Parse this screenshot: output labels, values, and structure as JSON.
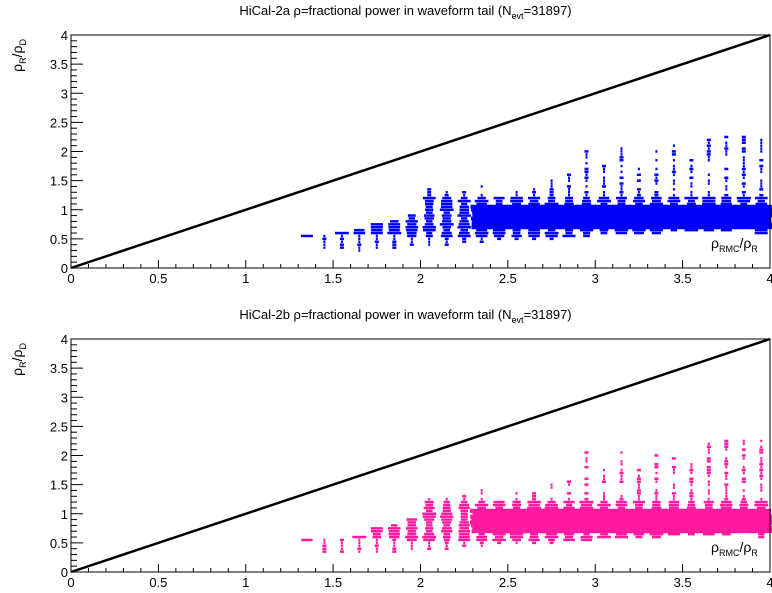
{
  "chart_data": [
    {
      "type": "scatter",
      "title": {
        "prefix": "HiCal-2a ρ=fractional power in waveform tail (N",
        "sub": "evt",
        "suffix": "=31897)"
      },
      "ylabel": {
        "a": "ρ",
        "a_sub": "R",
        "mid": "/ρ",
        "b_sub": "D"
      },
      "xlabel": {
        "a": "ρ",
        "a_sub": "RMC",
        "mid": "/ρ",
        "b_sub": "R"
      },
      "xlim": [
        0,
        4
      ],
      "ylim": [
        0,
        4
      ],
      "x_ticks": [
        "0",
        "0.5",
        "1",
        "1.5",
        "2",
        "2.5",
        "3",
        "3.5",
        "4"
      ],
      "y_ticks": [
        "0",
        "0.5",
        "1",
        "1.5",
        "2",
        "2.5",
        "3",
        "3.5",
        "4"
      ],
      "reference_line": {
        "x": [
          0,
          4
        ],
        "y": [
          0,
          4
        ],
        "color": "#000000"
      },
      "marker_color": "#0000ff",
      "columns": [
        {
          "x": 1.35,
          "y_min": 0.55,
          "y_max": 0.55
        },
        {
          "x": 1.45,
          "y_min": 0.35,
          "y_max": 0.55
        },
        {
          "x": 1.55,
          "y_min": 0.35,
          "y_max": 0.6
        },
        {
          "x": 1.65,
          "y_min": 0.3,
          "y_max": 0.65
        },
        {
          "x": 1.75,
          "y_min": 0.35,
          "y_max": 0.75
        },
        {
          "x": 1.85,
          "y_min": 0.35,
          "y_max": 0.8
        },
        {
          "x": 1.95,
          "y_min": 0.4,
          "y_max": 0.9
        },
        {
          "x": 2.05,
          "y_min": 0.4,
          "y_max": 1.35
        },
        {
          "x": 2.15,
          "y_min": 0.4,
          "y_max": 1.3
        },
        {
          "x": 2.25,
          "y_min": 0.45,
          "y_max": 1.3
        },
        {
          "x": 2.35,
          "y_min": 0.45,
          "y_max": 1.45
        },
        {
          "x": 2.45,
          "y_min": 0.5,
          "y_max": 1.2
        },
        {
          "x": 2.55,
          "y_min": 0.5,
          "y_max": 1.35
        },
        {
          "x": 2.65,
          "y_min": 0.5,
          "y_max": 1.35
        },
        {
          "x": 2.75,
          "y_min": 0.5,
          "y_max": 1.5
        },
        {
          "x": 2.85,
          "y_min": 0.55,
          "y_max": 1.6
        },
        {
          "x": 2.95,
          "y_min": 0.55,
          "y_max": 2.05
        },
        {
          "x": 3.05,
          "y_min": 0.6,
          "y_max": 1.75
        },
        {
          "x": 3.15,
          "y_min": 0.6,
          "y_max": 2.05
        },
        {
          "x": 3.25,
          "y_min": 0.6,
          "y_max": 1.8
        },
        {
          "x": 3.35,
          "y_min": 0.6,
          "y_max": 2.0
        },
        {
          "x": 3.45,
          "y_min": 0.65,
          "y_max": 2.1
        },
        {
          "x": 3.55,
          "y_min": 0.65,
          "y_max": 1.85
        },
        {
          "x": 3.65,
          "y_min": 0.65,
          "y_max": 2.2
        },
        {
          "x": 3.75,
          "y_min": 0.65,
          "y_max": 2.25
        },
        {
          "x": 3.85,
          "y_min": 0.7,
          "y_max": 2.25
        },
        {
          "x": 3.95,
          "y_min": 0.6,
          "y_max": 2.25
        }
      ],
      "dense_band": {
        "x": [
          2.3,
          4.0
        ],
        "y": [
          0.7,
          1.1
        ]
      }
    },
    {
      "type": "scatter",
      "title": {
        "prefix": "HiCal-2b ρ=fractional power in waveform tail (N",
        "sub": "evt",
        "suffix": "=31897)"
      },
      "ylabel": {
        "a": "ρ",
        "a_sub": "R",
        "mid": "/ρ",
        "b_sub": "D"
      },
      "xlabel": {
        "a": "ρ",
        "a_sub": "RMC",
        "mid": "/ρ",
        "b_sub": "R"
      },
      "xlim": [
        0,
        4
      ],
      "ylim": [
        0,
        4
      ],
      "x_ticks": [
        "0",
        "0.5",
        "1",
        "1.5",
        "2",
        "2.5",
        "3",
        "3.5",
        "4"
      ],
      "y_ticks": [
        "0",
        "0.5",
        "1",
        "1.5",
        "2",
        "2.5",
        "3",
        "3.5",
        "4"
      ],
      "reference_line": {
        "x": [
          0,
          4
        ],
        "y": [
          0,
          4
        ],
        "color": "#000000"
      },
      "marker_color": "#ff1aa0",
      "columns": [
        {
          "x": 1.35,
          "y_min": 0.55,
          "y_max": 0.55
        },
        {
          "x": 1.45,
          "y_min": 0.35,
          "y_max": 0.55
        },
        {
          "x": 1.55,
          "y_min": 0.35,
          "y_max": 0.55
        },
        {
          "x": 1.65,
          "y_min": 0.35,
          "y_max": 0.6
        },
        {
          "x": 1.75,
          "y_min": 0.35,
          "y_max": 0.75
        },
        {
          "x": 1.85,
          "y_min": 0.35,
          "y_max": 0.8
        },
        {
          "x": 1.95,
          "y_min": 0.4,
          "y_max": 0.9
        },
        {
          "x": 2.05,
          "y_min": 0.4,
          "y_max": 1.3
        },
        {
          "x": 2.15,
          "y_min": 0.4,
          "y_max": 1.25
        },
        {
          "x": 2.25,
          "y_min": 0.45,
          "y_max": 1.3
        },
        {
          "x": 2.35,
          "y_min": 0.45,
          "y_max": 1.4
        },
        {
          "x": 2.45,
          "y_min": 0.5,
          "y_max": 1.2
        },
        {
          "x": 2.55,
          "y_min": 0.5,
          "y_max": 1.35
        },
        {
          "x": 2.65,
          "y_min": 0.5,
          "y_max": 1.35
        },
        {
          "x": 2.75,
          "y_min": 0.5,
          "y_max": 1.5
        },
        {
          "x": 2.85,
          "y_min": 0.55,
          "y_max": 1.6
        },
        {
          "x": 2.95,
          "y_min": 0.55,
          "y_max": 2.05
        },
        {
          "x": 3.05,
          "y_min": 0.6,
          "y_max": 1.75
        },
        {
          "x": 3.15,
          "y_min": 0.6,
          "y_max": 2.05
        },
        {
          "x": 3.25,
          "y_min": 0.6,
          "y_max": 1.8
        },
        {
          "x": 3.35,
          "y_min": 0.6,
          "y_max": 2.0
        },
        {
          "x": 3.45,
          "y_min": 0.65,
          "y_max": 2.1
        },
        {
          "x": 3.55,
          "y_min": 0.65,
          "y_max": 1.85
        },
        {
          "x": 3.65,
          "y_min": 0.65,
          "y_max": 2.2
        },
        {
          "x": 3.75,
          "y_min": 0.65,
          "y_max": 2.25
        },
        {
          "x": 3.85,
          "y_min": 0.7,
          "y_max": 2.25
        },
        {
          "x": 3.95,
          "y_min": 0.6,
          "y_max": 2.25
        }
      ],
      "dense_band": {
        "x": [
          2.3,
          4.0
        ],
        "y": [
          0.7,
          1.1
        ]
      }
    }
  ]
}
